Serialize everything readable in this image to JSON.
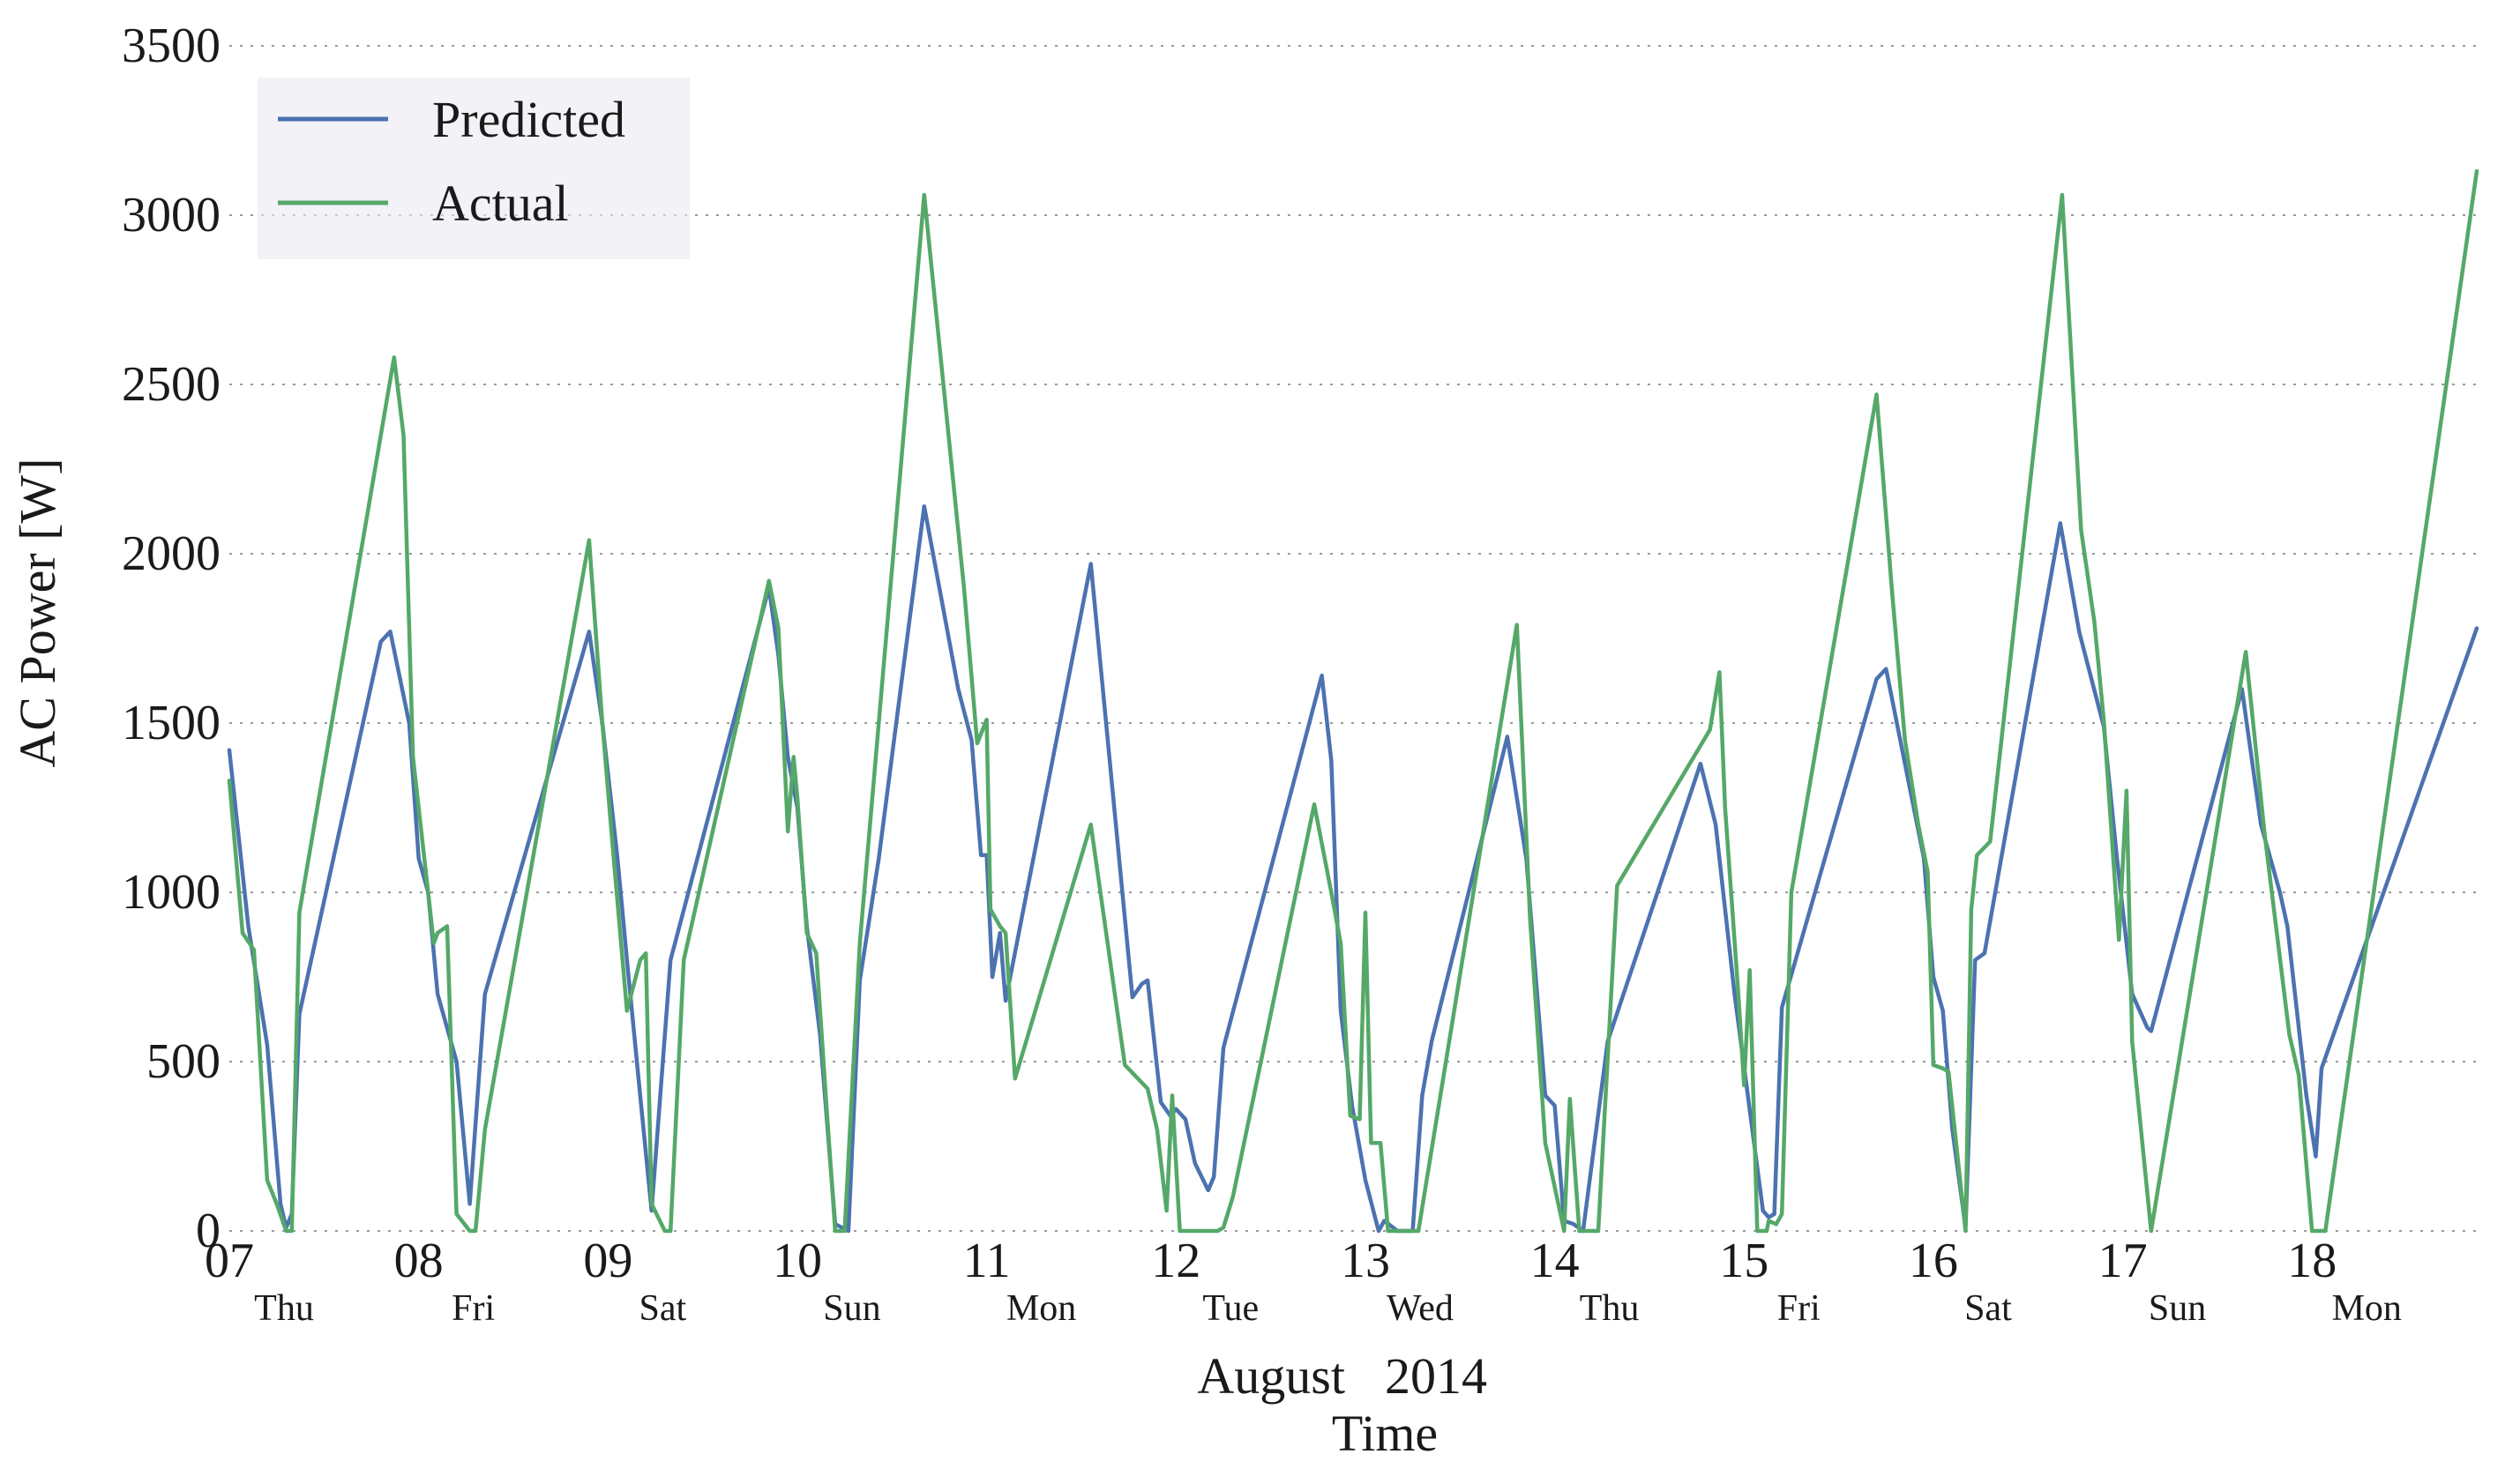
{
  "chart_data": {
    "type": "line",
    "title": "",
    "xlabel_month": "August",
    "xlabel_year": "2014",
    "xlabel": "Time",
    "ylabel": "AC Power [W]",
    "ylim": [
      0,
      3500
    ],
    "xlim": [
      7.0,
      18.87
    ],
    "yticks": [
      0,
      500,
      1000,
      1500,
      2000,
      2500,
      3000,
      3500
    ],
    "xticks": [
      {
        "value": 7,
        "day": "07",
        "weekday": "Thu"
      },
      {
        "value": 8,
        "day": "08",
        "weekday": "Fri"
      },
      {
        "value": 9,
        "day": "09",
        "weekday": "Sat"
      },
      {
        "value": 10,
        "day": "10",
        "weekday": "Sun"
      },
      {
        "value": 11,
        "day": "11",
        "weekday": "Mon"
      },
      {
        "value": 12,
        "day": "12",
        "weekday": "Tue"
      },
      {
        "value": 13,
        "day": "13",
        "weekday": "Wed"
      },
      {
        "value": 14,
        "day": "14",
        "weekday": "Thu"
      },
      {
        "value": 15,
        "day": "15",
        "weekday": "Fri"
      },
      {
        "value": 16,
        "day": "16",
        "weekday": "Sat"
      },
      {
        "value": 17,
        "day": "17",
        "weekday": "Sun"
      },
      {
        "value": 18,
        "day": "18",
        "weekday": "Mon"
      }
    ],
    "grid": "horizontal-dotted",
    "legend_position": "top-left",
    "series": [
      {
        "name": "Predicted",
        "color": "#4c72b0",
        "points": [
          [
            7.0,
            1420
          ],
          [
            7.1,
            900
          ],
          [
            7.2,
            550
          ],
          [
            7.27,
            80
          ],
          [
            7.3,
            10
          ],
          [
            7.33,
            50
          ],
          [
            7.37,
            640
          ],
          [
            7.8,
            1740
          ],
          [
            7.85,
            1770
          ],
          [
            7.95,
            1500
          ],
          [
            8.0,
            1100
          ],
          [
            8.05,
            1000
          ],
          [
            8.1,
            700
          ],
          [
            8.2,
            500
          ],
          [
            8.27,
            80
          ],
          [
            8.35,
            700
          ],
          [
            8.9,
            1770
          ],
          [
            8.97,
            1500
          ],
          [
            9.05,
            1100
          ],
          [
            9.1,
            800
          ],
          [
            9.17,
            400
          ],
          [
            9.23,
            60
          ],
          [
            9.33,
            800
          ],
          [
            9.85,
            1900
          ],
          [
            9.9,
            1700
          ],
          [
            9.95,
            1400
          ],
          [
            10.0,
            1250
          ],
          [
            10.05,
            900
          ],
          [
            10.12,
            580
          ],
          [
            10.2,
            20
          ],
          [
            10.27,
            0
          ],
          [
            10.33,
            740
          ],
          [
            10.43,
            1100
          ],
          [
            10.67,
            2140
          ],
          [
            10.85,
            1600
          ],
          [
            10.92,
            1450
          ],
          [
            10.97,
            1110
          ],
          [
            11.0,
            1110
          ],
          [
            11.03,
            750
          ],
          [
            11.07,
            880
          ],
          [
            11.1,
            680
          ],
          [
            11.55,
            1970
          ],
          [
            11.77,
            690
          ],
          [
            11.82,
            730
          ],
          [
            11.85,
            740
          ],
          [
            11.92,
            380
          ],
          [
            11.97,
            340
          ],
          [
            12.0,
            360
          ],
          [
            12.05,
            330
          ],
          [
            12.1,
            200
          ],
          [
            12.17,
            120
          ],
          [
            12.2,
            160
          ],
          [
            12.25,
            540
          ],
          [
            12.77,
            1640
          ],
          [
            12.82,
            1390
          ],
          [
            12.87,
            650
          ],
          [
            12.93,
            370
          ],
          [
            13.0,
            150
          ],
          [
            13.07,
            0
          ],
          [
            13.1,
            30
          ],
          [
            13.17,
            0
          ],
          [
            13.25,
            0
          ],
          [
            13.3,
            400
          ],
          [
            13.35,
            560
          ],
          [
            13.75,
            1460
          ],
          [
            13.85,
            1100
          ],
          [
            13.95,
            400
          ],
          [
            14.0,
            370
          ],
          [
            14.05,
            30
          ],
          [
            14.1,
            20
          ],
          [
            14.15,
            0
          ],
          [
            14.28,
            560
          ],
          [
            14.77,
            1380
          ],
          [
            14.85,
            1200
          ],
          [
            14.95,
            700
          ],
          [
            15.02,
            400
          ],
          [
            15.1,
            60
          ],
          [
            15.13,
            40
          ],
          [
            15.16,
            50
          ],
          [
            15.2,
            660
          ],
          [
            15.7,
            1630
          ],
          [
            15.75,
            1660
          ],
          [
            15.85,
            1380
          ],
          [
            15.95,
            1100
          ],
          [
            16.0,
            750
          ],
          [
            16.05,
            650
          ],
          [
            16.1,
            300
          ],
          [
            16.17,
            10
          ],
          [
            16.22,
            800
          ],
          [
            16.27,
            820
          ],
          [
            16.67,
            2090
          ],
          [
            16.77,
            1770
          ],
          [
            16.9,
            1490
          ],
          [
            16.97,
            1100
          ],
          [
            17.02,
            850
          ],
          [
            17.05,
            700
          ],
          [
            17.13,
            600
          ],
          [
            17.15,
            590
          ],
          [
            17.63,
            1600
          ],
          [
            17.73,
            1200
          ],
          [
            17.83,
            1000
          ],
          [
            17.87,
            900
          ],
          [
            17.93,
            600
          ],
          [
            17.97,
            400
          ],
          [
            18.02,
            220
          ],
          [
            18.05,
            480
          ],
          [
            18.87,
            1780
          ]
        ]
      },
      {
        "name": "Actual",
        "color": "#55a868",
        "points": [
          [
            7.0,
            1330
          ],
          [
            7.07,
            880
          ],
          [
            7.13,
            830
          ],
          [
            7.2,
            150
          ],
          [
            7.25,
            80
          ],
          [
            7.3,
            0
          ],
          [
            7.33,
            0
          ],
          [
            7.37,
            940
          ],
          [
            7.87,
            2580
          ],
          [
            7.92,
            2350
          ],
          [
            7.97,
            1400
          ],
          [
            8.03,
            1100
          ],
          [
            8.08,
            850
          ],
          [
            8.1,
            880
          ],
          [
            8.15,
            900
          ],
          [
            8.2,
            50
          ],
          [
            8.27,
            0
          ],
          [
            8.3,
            0
          ],
          [
            8.35,
            300
          ],
          [
            8.9,
            2040
          ],
          [
            8.97,
            1500
          ],
          [
            9.03,
            1100
          ],
          [
            9.1,
            650
          ],
          [
            9.17,
            800
          ],
          [
            9.2,
            820
          ],
          [
            9.23,
            80
          ],
          [
            9.3,
            0
          ],
          [
            9.33,
            0
          ],
          [
            9.4,
            800
          ],
          [
            9.85,
            1920
          ],
          [
            9.9,
            1780
          ],
          [
            9.95,
            1180
          ],
          [
            9.98,
            1400
          ],
          [
            10.0,
            1280
          ],
          [
            10.05,
            880
          ],
          [
            10.1,
            820
          ],
          [
            10.15,
            400
          ],
          [
            10.2,
            0
          ],
          [
            10.25,
            0
          ],
          [
            10.33,
            850
          ],
          [
            10.67,
            3060
          ],
          [
            10.88,
            1900
          ],
          [
            10.95,
            1440
          ],
          [
            11.0,
            1510
          ],
          [
            11.02,
            950
          ],
          [
            11.07,
            900
          ],
          [
            11.1,
            880
          ],
          [
            11.15,
            450
          ],
          [
            11.55,
            1200
          ],
          [
            11.73,
            490
          ],
          [
            11.85,
            420
          ],
          [
            11.9,
            300
          ],
          [
            11.95,
            60
          ],
          [
            11.98,
            400
          ],
          [
            12.02,
            0
          ],
          [
            12.1,
            0
          ],
          [
            12.22,
            0
          ],
          [
            12.25,
            10
          ],
          [
            12.3,
            100
          ],
          [
            12.73,
            1260
          ],
          [
            12.82,
            1000
          ],
          [
            12.87,
            850
          ],
          [
            12.92,
            340
          ],
          [
            12.97,
            330
          ],
          [
            13.0,
            940
          ],
          [
            13.03,
            260
          ],
          [
            13.08,
            260
          ],
          [
            13.12,
            0
          ],
          [
            13.17,
            0
          ],
          [
            13.28,
            0
          ],
          [
            13.8,
            1790
          ],
          [
            13.87,
            920
          ],
          [
            13.95,
            260
          ],
          [
            14.05,
            0
          ],
          [
            14.08,
            390
          ],
          [
            14.13,
            0
          ],
          [
            14.15,
            0
          ],
          [
            14.23,
            0
          ],
          [
            14.33,
            1020
          ],
          [
            14.82,
            1480
          ],
          [
            14.87,
            1650
          ],
          [
            14.9,
            1250
          ],
          [
            14.97,
            700
          ],
          [
            15.0,
            430
          ],
          [
            15.03,
            770
          ],
          [
            15.07,
            0
          ],
          [
            15.12,
            0
          ],
          [
            15.13,
            30
          ],
          [
            15.17,
            20
          ],
          [
            15.2,
            50
          ],
          [
            15.25,
            1000
          ],
          [
            15.7,
            2470
          ],
          [
            15.78,
            1900
          ],
          [
            15.85,
            1450
          ],
          [
            15.92,
            1200
          ],
          [
            15.97,
            1060
          ],
          [
            16.0,
            490
          ],
          [
            16.05,
            480
          ],
          [
            16.08,
            470
          ],
          [
            16.17,
            0
          ],
          [
            16.2,
            950
          ],
          [
            16.23,
            1110
          ],
          [
            16.3,
            1150
          ],
          [
            16.68,
            3060
          ],
          [
            16.78,
            2070
          ],
          [
            16.85,
            1800
          ],
          [
            16.9,
            1510
          ],
          [
            16.95,
            1100
          ],
          [
            16.98,
            860
          ],
          [
            17.02,
            1300
          ],
          [
            17.05,
            560
          ],
          [
            17.15,
            0
          ],
          [
            17.65,
            1710
          ],
          [
            17.75,
            1170
          ],
          [
            17.88,
            580
          ],
          [
            17.93,
            460
          ],
          [
            18.0,
            0
          ],
          [
            18.07,
            0
          ],
          [
            18.87,
            3130
          ]
        ]
      }
    ]
  }
}
